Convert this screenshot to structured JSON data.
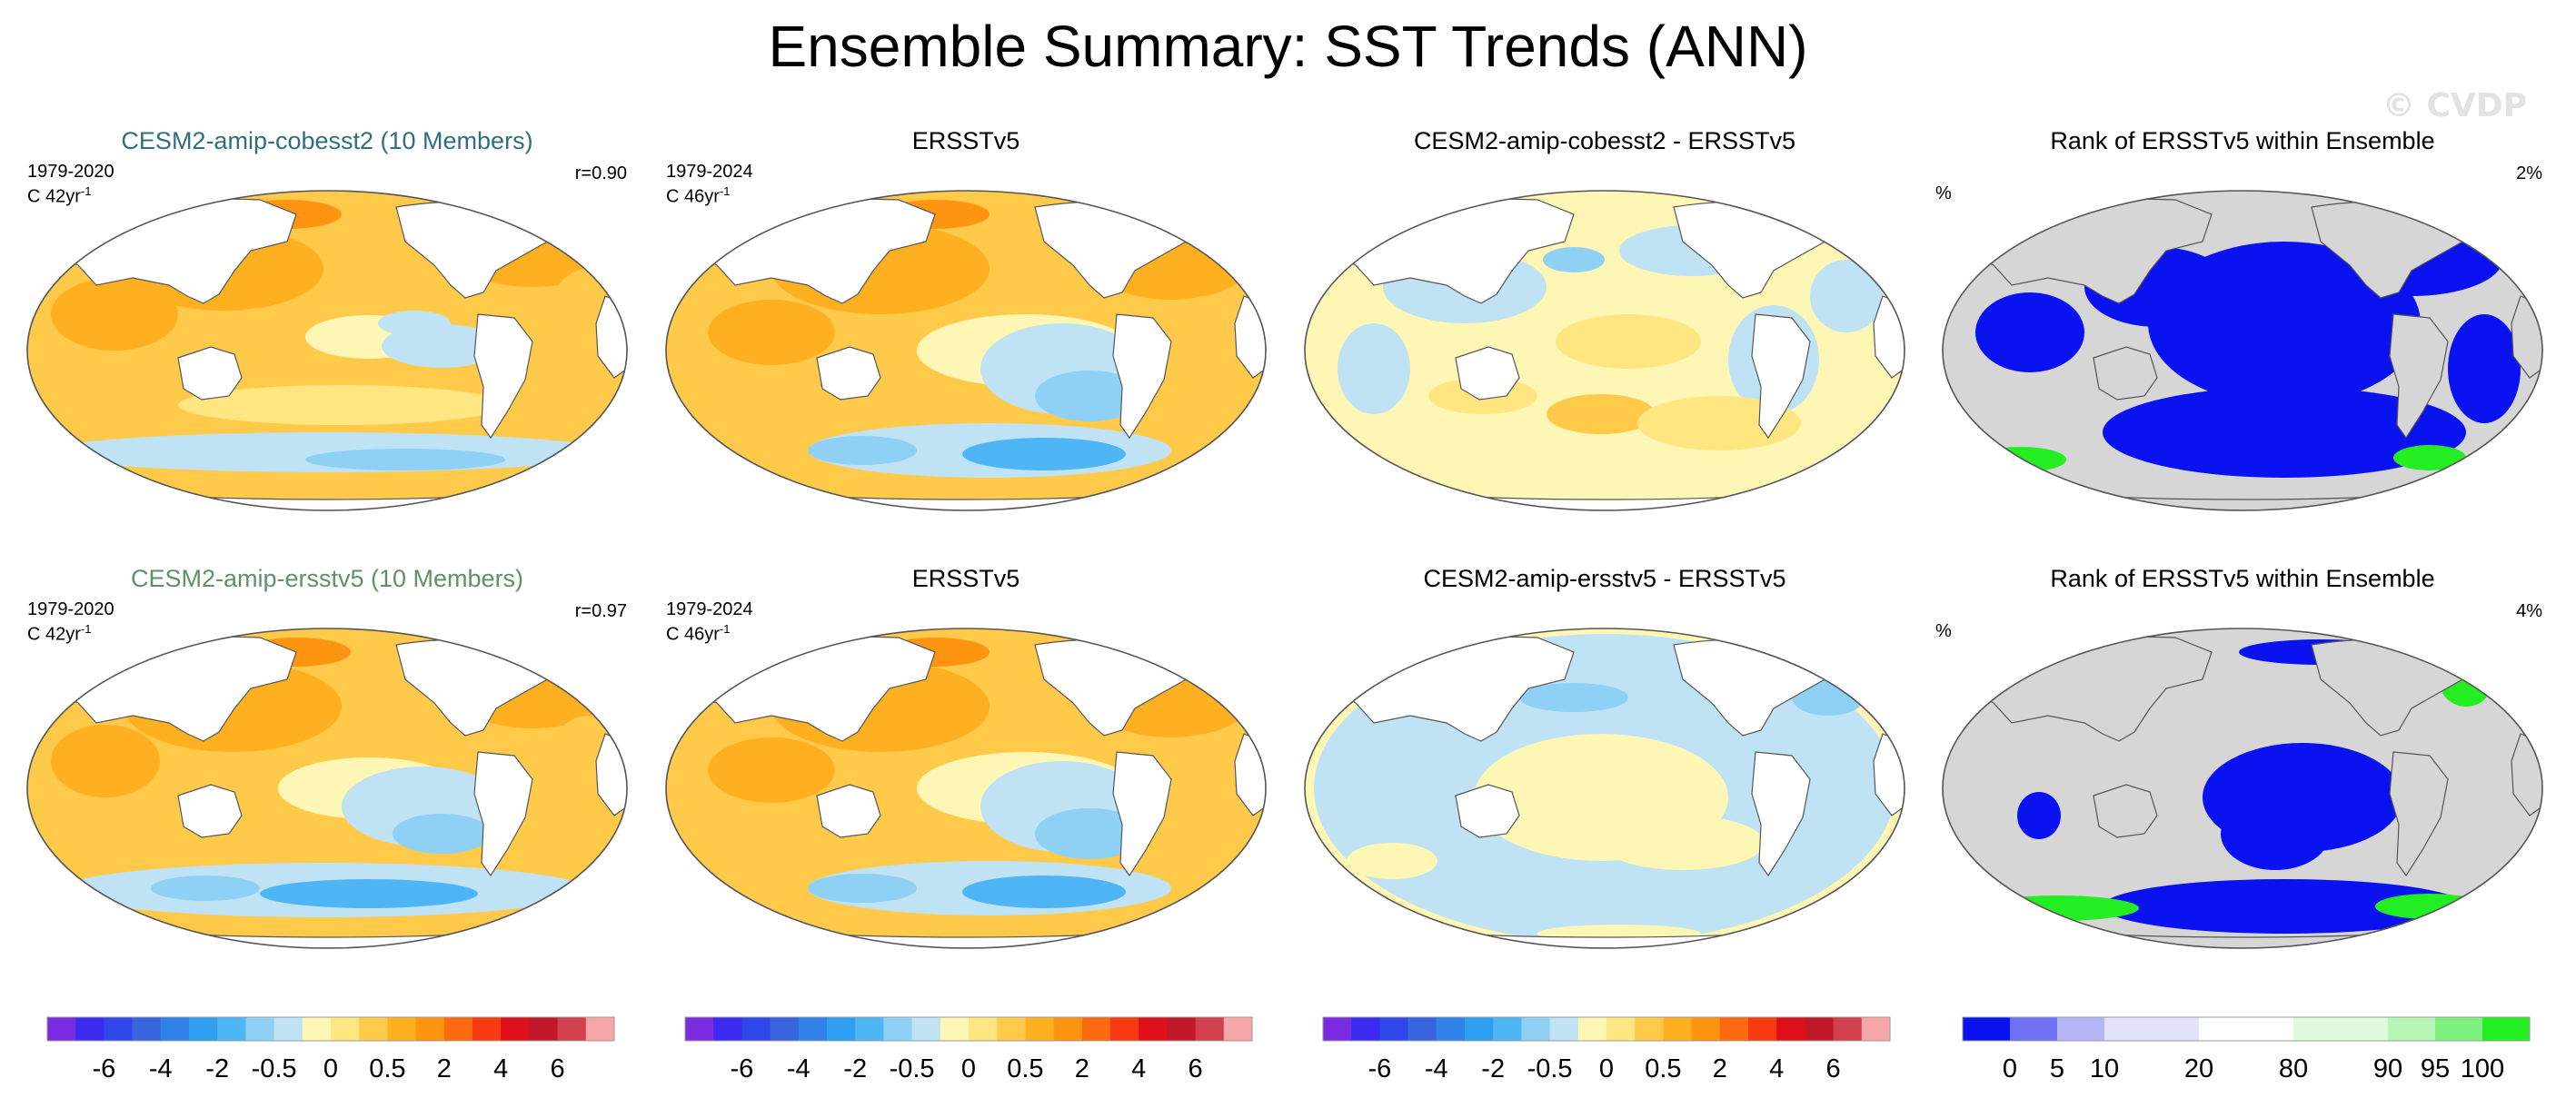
{
  "header": {
    "title": "Ensemble Summary: SST Trends (ANN)",
    "watermark": "© CVDP"
  },
  "rows": [
    {
      "model": {
        "title": "CESM2-amip-cobesst2 (10 Members)",
        "period": "1979-2020",
        "units_prefix": "C 42yr",
        "units_exp": "-1",
        "correlation": "r=0.90"
      },
      "obs": {
        "title": "ERSSTv5",
        "period": "1979-2024",
        "units_prefix": "C 46yr",
        "units_exp": "-1"
      },
      "diff": {
        "title": "CESM2-amip-cobesst2 - ERSSTv5"
      },
      "rank": {
        "title": "Rank of ERSSTv5 within Ensemble",
        "unit": "%",
        "percent_label": "2%"
      }
    },
    {
      "model": {
        "title": "CESM2-amip-ersstv5 (10 Members)",
        "period": "1979-2020",
        "units_prefix": "C 42yr",
        "units_exp": "-1",
        "correlation": "r=0.97"
      },
      "obs": {
        "title": "ERSSTv5",
        "period": "1979-2024",
        "units_prefix": "C 46yr",
        "units_exp": "-1"
      },
      "diff": {
        "title": "CESM2-amip-ersstv5 - ERSSTv5"
      },
      "rank": {
        "title": "Rank of ERSSTv5 within Ensemble",
        "unit": "%",
        "percent_label": "4%"
      }
    }
  ],
  "colorbars": {
    "trend": {
      "colors": [
        "#7a2be0",
        "#3b2bf0",
        "#2f46e8",
        "#3964e0",
        "#2f82e8",
        "#2f9ff2",
        "#4fb6f5",
        "#8fd0f5",
        "#bfe2f5",
        "#fdf6b5",
        "#ffe680",
        "#ffc94a",
        "#ffb020",
        "#ff9410",
        "#fe6a10",
        "#f63a12",
        "#e0101a",
        "#c01828",
        "#d24050",
        "#f6a6a6"
      ],
      "ticks": [
        "-6",
        "-4",
        "-2",
        "-0.5",
        "0",
        "0.5",
        "2",
        "4",
        "6"
      ]
    },
    "rank": {
      "colors": [
        "#0a12f0",
        "#7070f4",
        "#b4b6f6",
        "#e2e2fa",
        "#e2e2fa",
        "#ffffff",
        "#ffffff",
        "#e0fbe0",
        "#e0fbe0",
        "#b6f7b6",
        "#7ef27e",
        "#22ee22"
      ],
      "ticks": [
        "0",
        "5",
        "10",
        "20",
        "80",
        "90",
        "95",
        "100"
      ]
    }
  },
  "map_colors": {
    "land": "#ffffff",
    "rank_land": "#d6d6d6",
    "coast": "#555555",
    "warm_light": "#ffe680",
    "warm": "#ffc94a",
    "warm_strong": "#ffb020",
    "warm_hot": "#ff9410",
    "cool_light": "#bfe2f5",
    "cool": "#8fd0f5",
    "cool_strong": "#4fb6f5",
    "neutral": "#fdf6b5",
    "rank_low": "#0a12f0",
    "rank_high": "#22ee22"
  }
}
